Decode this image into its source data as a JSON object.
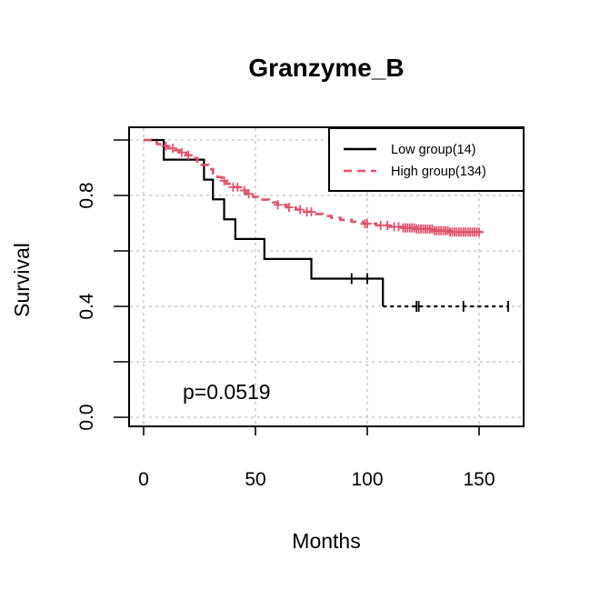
{
  "chart_data": {
    "type": "line",
    "title": "Granzyme_B",
    "xlabel": "Months",
    "ylabel": "Survival",
    "xlim": [
      -7,
      170
    ],
    "ylim": [
      -0.02,
      1.04
    ],
    "xticks": [
      0,
      50,
      100,
      150
    ],
    "yticks": [
      0.0,
      0.2,
      0.4,
      0.6,
      0.8,
      1.0
    ],
    "ytick_labels": [
      "0.0",
      "",
      "0.4",
      "",
      "0.8",
      ""
    ],
    "grid": true,
    "legend_position": "top-right",
    "annotation": "p=0.0519",
    "series": [
      {
        "name": "Low group(14)",
        "color": "#000000",
        "line_style": "solid",
        "censor_dashed": true,
        "steps": [
          [
            0,
            1.0
          ],
          [
            9,
            0.929
          ],
          [
            27,
            0.857
          ],
          [
            31,
            0.786
          ],
          [
            36,
            0.714
          ],
          [
            41,
            0.643
          ],
          [
            54,
            0.571
          ],
          [
            75,
            0.5
          ],
          [
            107,
            0.4
          ],
          [
            163,
            0.4
          ]
        ],
        "censor_x": [
          93,
          100,
          122,
          123,
          143,
          163
        ]
      },
      {
        "name": "High group(134)",
        "color": "#DF536B",
        "line_style": "dashed",
        "steps": [
          [
            0,
            1.0
          ],
          [
            3,
            0.993
          ],
          [
            6,
            0.985
          ],
          [
            9,
            0.978
          ],
          [
            11,
            0.97
          ],
          [
            14,
            0.963
          ],
          [
            16,
            0.955
          ],
          [
            19,
            0.945
          ],
          [
            21,
            0.935
          ],
          [
            24,
            0.922
          ],
          [
            26,
            0.91
          ],
          [
            29,
            0.895
          ],
          [
            31,
            0.88
          ],
          [
            33,
            0.866
          ],
          [
            35,
            0.853
          ],
          [
            37,
            0.842
          ],
          [
            40,
            0.83
          ],
          [
            43,
            0.818
          ],
          [
            46,
            0.806
          ],
          [
            49,
            0.795
          ],
          [
            52,
            0.785
          ],
          [
            56,
            0.775
          ],
          [
            60,
            0.766
          ],
          [
            64,
            0.757
          ],
          [
            68,
            0.749
          ],
          [
            72,
            0.741
          ],
          [
            76,
            0.733
          ],
          [
            80,
            0.726
          ],
          [
            84,
            0.719
          ],
          [
            88,
            0.712
          ],
          [
            93,
            0.705
          ],
          [
            98,
            0.698
          ],
          [
            104,
            0.692
          ],
          [
            110,
            0.687
          ],
          [
            116,
            0.683
          ],
          [
            122,
            0.679
          ],
          [
            130,
            0.673
          ],
          [
            137,
            0.668
          ],
          [
            152,
            0.668
          ]
        ],
        "censor_x": [
          10,
          13,
          17,
          20,
          36,
          40,
          42,
          45,
          47,
          60,
          65,
          70,
          73,
          75,
          99,
          100,
          106,
          109,
          112,
          114,
          116,
          117,
          118,
          119,
          120,
          121,
          122,
          123,
          124,
          125,
          126,
          127,
          128,
          129,
          130,
          131,
          132,
          133,
          134,
          135,
          136,
          137,
          138,
          139,
          140,
          141,
          142,
          143,
          144,
          145,
          146,
          147,
          148,
          149,
          150
        ]
      }
    ]
  }
}
